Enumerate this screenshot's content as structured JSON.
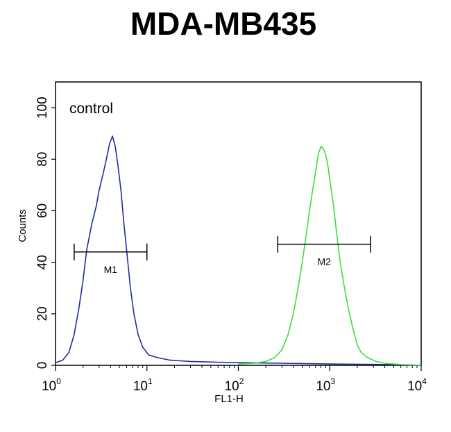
{
  "chart_data": {
    "type": "line",
    "title": "MDA-MB435",
    "xlabel": "FL1-H",
    "ylabel": "Counts",
    "x_scale": "log",
    "xlim": [
      1,
      10000
    ],
    "ylim": [
      0,
      110
    ],
    "x_ticks": [
      {
        "base": "10",
        "exp": "0"
      },
      {
        "base": "10",
        "exp": "1"
      },
      {
        "base": "10",
        "exp": "2"
      },
      {
        "base": "10",
        "exp": "3"
      },
      {
        "base": "10",
        "exp": "4"
      }
    ],
    "y_ticks": [
      "0",
      "20",
      "40",
      "60",
      "80",
      "100"
    ],
    "annotation": "control",
    "series": [
      {
        "color": "#1f2aa8",
        "x": [
          1.0,
          1.2,
          1.4,
          1.6,
          1.8,
          2.0,
          2.2,
          2.5,
          2.8,
          3.0,
          3.3,
          3.6,
          3.9,
          4.2,
          4.5,
          4.8,
          5.2,
          5.6,
          6.1,
          6.6,
          7.2,
          8.0,
          9.0,
          10.5,
          13,
          18,
          30,
          60,
          120,
          300,
          1000,
          5000,
          10000
        ],
        "y": [
          1,
          2,
          5,
          12,
          22,
          33,
          45,
          55,
          62,
          68,
          74,
          80,
          86,
          89,
          85,
          78,
          68,
          55,
          42,
          30,
          20,
          12,
          7,
          4,
          3,
          2,
          1.5,
          1.2,
          1,
          0.8,
          0.5,
          0.3,
          0
        ]
      },
      {
        "color": "#38e038",
        "x": [
          100,
          150,
          200,
          250,
          300,
          350,
          400,
          450,
          500,
          550,
          600,
          650,
          700,
          750,
          800,
          850,
          900,
          950,
          1000,
          1100,
          1200,
          1300,
          1450,
          1600,
          1800,
          2000,
          2200,
          2600,
          3200,
          4000,
          6000,
          10000
        ],
        "y": [
          0.5,
          0.8,
          1.5,
          3,
          6,
          12,
          20,
          30,
          40,
          50,
          60,
          68,
          75,
          82,
          85,
          84,
          82,
          78,
          72,
          62,
          50,
          40,
          30,
          22,
          14,
          8,
          5,
          3,
          1.5,
          0.8,
          0.3,
          0
        ]
      }
    ],
    "markers": [
      {
        "label": "M1",
        "x_start": 1.6,
        "x_end": 10,
        "y": 44
      },
      {
        "label": "M2",
        "x_start": 270,
        "x_end": 2800,
        "y": 47
      }
    ]
  }
}
